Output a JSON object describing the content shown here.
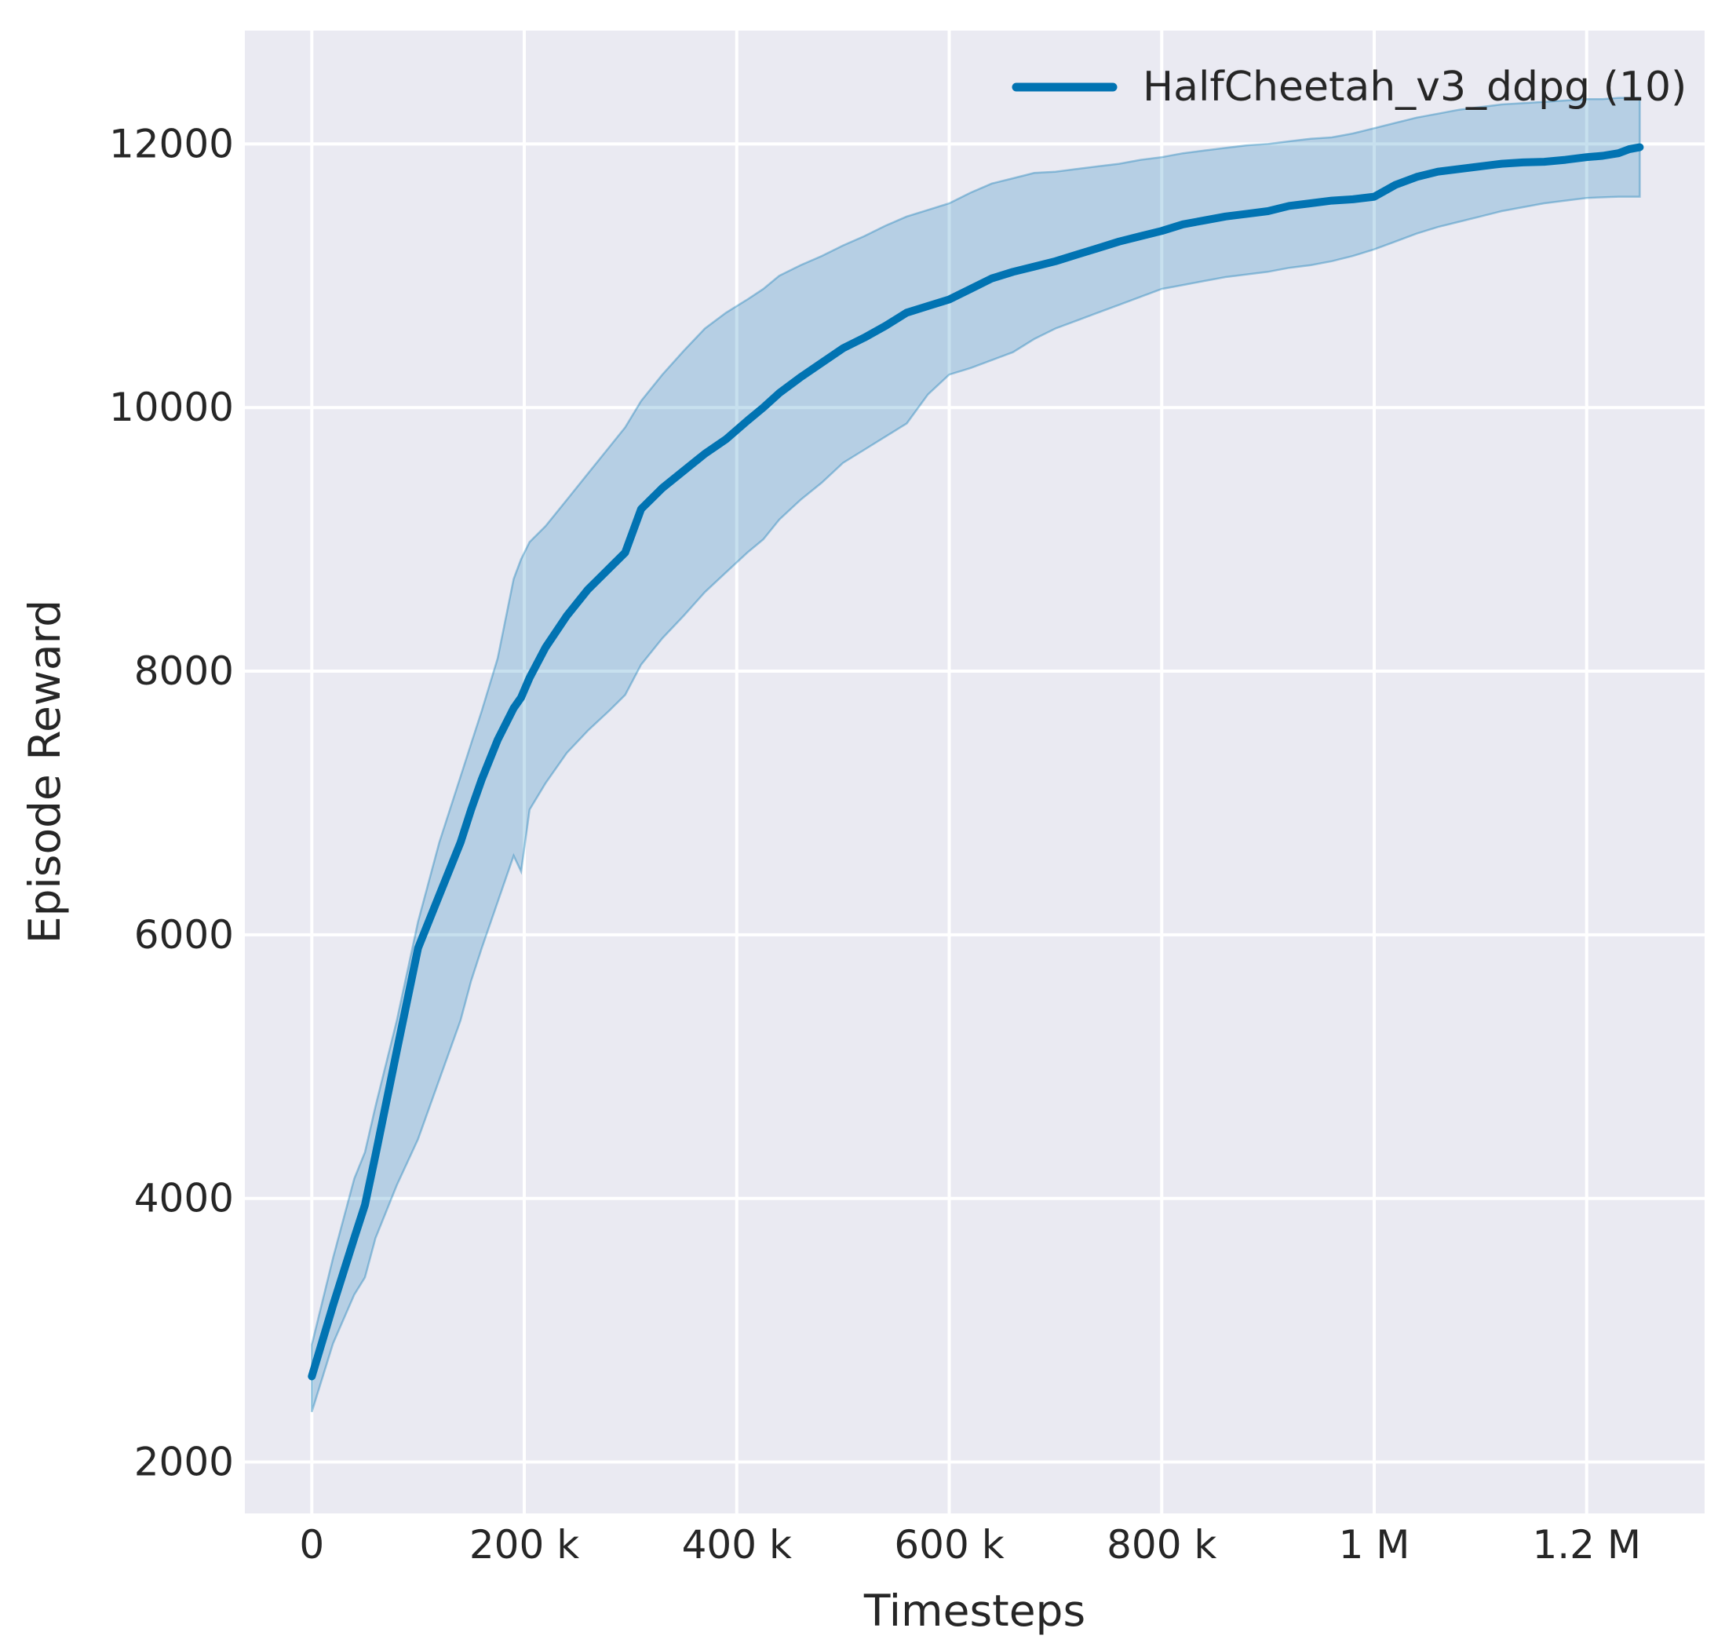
{
  "chart_data": {
    "type": "line",
    "title": "",
    "xlabel": "Timesteps",
    "ylabel": "Episode Reward",
    "grid": true,
    "legend": {
      "position": "upper right",
      "entries": [
        {
          "label": "HalfCheetah_v3_ddpg (10)",
          "color": "#0173b2"
        }
      ]
    },
    "xlim": [
      -63000,
      1311000
    ],
    "ylim": [
      1610,
      12860
    ],
    "xticks": [
      {
        "value": 0,
        "label": "0"
      },
      {
        "value": 200000,
        "label": "200 k"
      },
      {
        "value": 400000,
        "label": "400 k"
      },
      {
        "value": 600000,
        "label": "600 k"
      },
      {
        "value": 800000,
        "label": "800 k"
      },
      {
        "value": 1000000,
        "label": "1 M"
      },
      {
        "value": 1200000,
        "label": "1.2 M"
      }
    ],
    "yticks": [
      {
        "value": 2000,
        "label": "2000"
      },
      {
        "value": 4000,
        "label": "4000"
      },
      {
        "value": 6000,
        "label": "6000"
      },
      {
        "value": 8000,
        "label": "8000"
      },
      {
        "value": 10000,
        "label": "10000"
      },
      {
        "value": 12000,
        "label": "12000"
      }
    ],
    "colors": {
      "line": "#0173b2",
      "band_fill": "#0173b2",
      "band_fill_opacity": 0.22,
      "band_edge": "#0173b2",
      "band_edge_opacity": 0.35,
      "axes_background": "#eaeaf2",
      "grid": "#ffffff",
      "text": "#262626"
    },
    "series": [
      {
        "name": "HalfCheetah_v3_ddpg (10)",
        "x": [
          0,
          20000,
          40000,
          50000,
          60000,
          80000,
          100000,
          120000,
          140000,
          150000,
          160000,
          175000,
          190000,
          197000,
          205000,
          220000,
          240000,
          260000,
          280000,
          295000,
          310000,
          330000,
          350000,
          370000,
          390000,
          410000,
          425000,
          440000,
          460000,
          480000,
          500000,
          520000,
          540000,
          560000,
          580000,
          600000,
          620000,
          640000,
          660000,
          680000,
          700000,
          720000,
          740000,
          760000,
          780000,
          800000,
          820000,
          840000,
          860000,
          880000,
          900000,
          920000,
          940000,
          960000,
          980000,
          1000000,
          1020000,
          1040000,
          1060000,
          1080000,
          1100000,
          1120000,
          1140000,
          1160000,
          1180000,
          1200000,
          1215000,
          1230000,
          1240000,
          1250000
        ],
        "mean": [
          2650,
          3190,
          3700,
          3950,
          4330,
          5120,
          5900,
          6300,
          6700,
          6950,
          7180,
          7480,
          7720,
          7800,
          7950,
          8180,
          8420,
          8620,
          8780,
          8900,
          9230,
          9390,
          9520,
          9650,
          9760,
          9900,
          10000,
          10110,
          10230,
          10340,
          10450,
          10530,
          10620,
          10720,
          10770,
          10820,
          10900,
          10980,
          11030,
          11070,
          11110,
          11160,
          11210,
          11260,
          11300,
          11340,
          11390,
          11420,
          11450,
          11470,
          11490,
          11530,
          11550,
          11570,
          11580,
          11600,
          11690,
          11750,
          11790,
          11810,
          11830,
          11850,
          11860,
          11865,
          11880,
          11900,
          11910,
          11930,
          11960,
          11975
        ],
        "band_lower": [
          2380,
          2900,
          3270,
          3400,
          3700,
          4100,
          4450,
          4900,
          5350,
          5650,
          5900,
          6250,
          6600,
          6480,
          6950,
          7150,
          7380,
          7550,
          7700,
          7820,
          8050,
          8250,
          8420,
          8600,
          8750,
          8900,
          9000,
          9150,
          9300,
          9430,
          9580,
          9680,
          9780,
          9880,
          10100,
          10250,
          10300,
          10360,
          10420,
          10520,
          10600,
          10660,
          10720,
          10780,
          10840,
          10900,
          10930,
          10960,
          10990,
          11010,
          11030,
          11060,
          11080,
          11110,
          11150,
          11200,
          11260,
          11320,
          11370,
          11410,
          11450,
          11490,
          11520,
          11550,
          11570,
          11590,
          11595,
          11600,
          11600,
          11600
        ],
        "band_upper": [
          2890,
          3550,
          4150,
          4350,
          4700,
          5350,
          6100,
          6700,
          7200,
          7450,
          7700,
          8100,
          8700,
          8850,
          8980,
          9100,
          9300,
          9500,
          9700,
          9850,
          10050,
          10250,
          10430,
          10600,
          10720,
          10820,
          10900,
          11000,
          11080,
          11150,
          11230,
          11300,
          11380,
          11450,
          11500,
          11550,
          11630,
          11700,
          11740,
          11780,
          11790,
          11810,
          11830,
          11850,
          11880,
          11900,
          11930,
          11950,
          11970,
          11990,
          12000,
          12020,
          12040,
          12050,
          12080,
          12120,
          12160,
          12200,
          12230,
          12260,
          12280,
          12300,
          12310,
          12320,
          12330,
          12340,
          12340,
          12350,
          12350,
          12350
        ]
      }
    ]
  }
}
